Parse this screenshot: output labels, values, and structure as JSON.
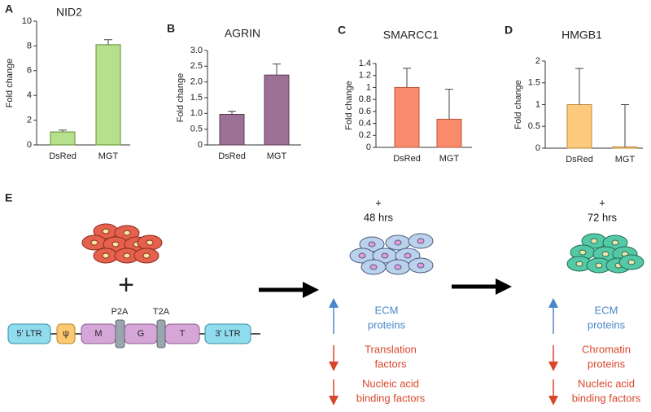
{
  "chart_data": [
    {
      "type": "bar",
      "panel": "A",
      "title": "NID2",
      "y_label": "Fold change",
      "categories": [
        "DsRed",
        "MGT"
      ],
      "values": [
        1.05,
        8.1
      ],
      "errors": [
        0.15,
        0.4
      ],
      "color": "#b6e08c",
      "edge": "#5f8f2e",
      "ylim": [
        0,
        10
      ],
      "yticks": [
        0,
        2,
        4,
        6,
        8,
        10
      ]
    },
    {
      "type": "bar",
      "panel": "B",
      "title": "AGRIN",
      "y_label": "Fold change",
      "categories": [
        "DsRed",
        "MGT"
      ],
      "values": [
        0.97,
        2.22
      ],
      "errors": [
        0.1,
        0.35
      ],
      "color": "#9d7196",
      "edge": "#5e3d59",
      "ylim": [
        0,
        3
      ],
      "yticks": [
        0,
        0.5,
        {
          "value": 1,
          "label": "1.0"
        },
        1.5,
        {
          "value": 2,
          "label": "2.0"
        },
        2.5,
        {
          "value": 3,
          "label": "3.0"
        }
      ]
    },
    {
      "type": "bar",
      "panel": "C",
      "title": "SMARCC1",
      "y_label": "Fold change",
      "categories": [
        "DsRed",
        "MGT"
      ],
      "values": [
        1.0,
        0.47
      ],
      "errors": [
        0.32,
        0.5
      ],
      "color": "#f98b6c",
      "edge": "#b9553a",
      "ylim": [
        0,
        1.4
      ],
      "yticks": [
        0,
        0.2,
        0.4,
        0.6,
        0.8,
        1,
        1.2,
        1.4
      ]
    },
    {
      "type": "bar",
      "panel": "D",
      "title": "HMGB1",
      "y_label": "Fold change",
      "categories": [
        "DsRed",
        "MGT"
      ],
      "values": [
        1.0,
        0.03
      ],
      "errors": [
        0.83,
        0.97
      ],
      "color": "#fdca7d",
      "edge": "#b88a3a",
      "ylim": [
        0,
        2
      ],
      "yticks": [
        0,
        0.5,
        1,
        1.5,
        2
      ]
    }
  ],
  "diagram": {
    "panel": "E",
    "vector": {
      "ltr5": "5' LTR",
      "psi": "ψ",
      "m": "M",
      "g": "G",
      "t": "T",
      "ltr3": "3' LTR",
      "p2a": "P2A",
      "t2a": "T2A"
    },
    "plus": "+",
    "time1": [
      "+",
      "48 hrs"
    ],
    "time2": [
      "+",
      "72 hrs"
    ],
    "up1": [
      "ECM",
      "proteins"
    ],
    "down1a": [
      "Translation",
      "factors"
    ],
    "down1b": [
      "Nucleic acid",
      "binding factors"
    ],
    "up2": [
      "ECM",
      "proteins"
    ],
    "down2a": [
      "Chromatin",
      "proteins"
    ],
    "down2b": [
      "Nucleic acid",
      "binding factors"
    ]
  }
}
